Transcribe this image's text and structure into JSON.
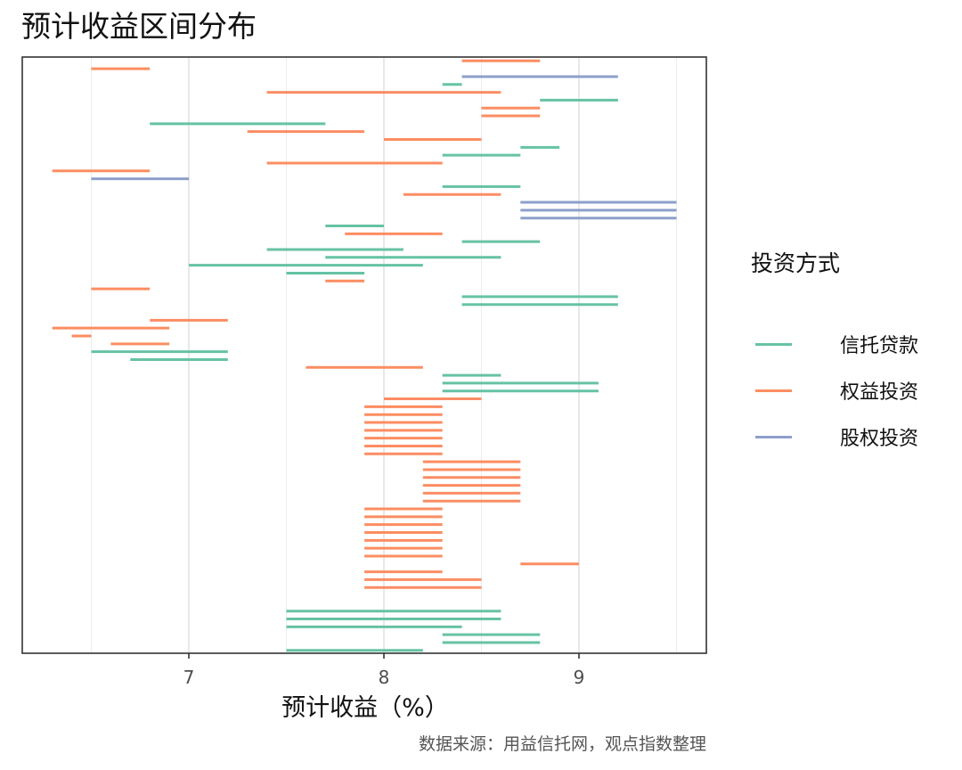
{
  "title": "预计收益区间分布",
  "caption": "数据来源：用益信托网，观点指数整理",
  "legend": {
    "title": "投资方式",
    "items": [
      {
        "label": "信托贷款",
        "color": "#66C2A5"
      },
      {
        "label": "权益投资",
        "color": "#FC8D62"
      },
      {
        "label": "股权投资",
        "color": "#8DA0CB"
      }
    ]
  },
  "chart_data": {
    "type": "range-segments",
    "title": "预计收益区间分布",
    "xlabel": "预计收益（%）",
    "ylabel": "",
    "xlim": [
      6.2,
      9.65
    ],
    "x_ticks": [
      7,
      8,
      9
    ],
    "minor_gridlines": [
      6.5,
      7.5,
      8.5,
      9.5
    ],
    "grid": true,
    "legend_position": "right",
    "legend_title": "投资方式",
    "categories": [
      "信托贷款",
      "权益投资",
      "股权投资"
    ],
    "colors": {
      "信托贷款": "#66C2A5",
      "权益投资": "#FC8D62",
      "股权投资": "#8DA0CB"
    },
    "rows_total": 76,
    "segments": [
      {
        "row": 0,
        "type": "权益投资",
        "low": 8.4,
        "high": 8.8
      },
      {
        "row": 1,
        "type": "权益投资",
        "low": 6.5,
        "high": 6.8
      },
      {
        "row": 2,
        "type": "股权投资",
        "low": 8.4,
        "high": 9.2
      },
      {
        "row": 3,
        "type": "信托贷款",
        "low": 8.3,
        "high": 8.4
      },
      {
        "row": 4,
        "type": "权益投资",
        "low": 7.4,
        "high": 8.6
      },
      {
        "row": 5,
        "type": "信托贷款",
        "low": 8.8,
        "high": 9.2
      },
      {
        "row": 6,
        "type": "权益投资",
        "low": 8.5,
        "high": 8.8
      },
      {
        "row": 7,
        "type": "权益投资",
        "low": 8.5,
        "high": 8.8
      },
      {
        "row": 8,
        "type": "信托贷款",
        "low": 6.8,
        "high": 7.7
      },
      {
        "row": 9,
        "type": "权益投资",
        "low": 7.3,
        "high": 7.9
      },
      {
        "row": 10,
        "type": "权益投资",
        "low": 8.0,
        "high": 8.5
      },
      {
        "row": 11,
        "type": "信托贷款",
        "low": 8.7,
        "high": 8.9
      },
      {
        "row": 12,
        "type": "信托贷款",
        "low": 8.3,
        "high": 8.7
      },
      {
        "row": 13,
        "type": "权益投资",
        "low": 7.4,
        "high": 8.3
      },
      {
        "row": 14,
        "type": "权益投资",
        "low": 6.3,
        "high": 6.8
      },
      {
        "row": 15,
        "type": "股权投资",
        "low": 6.5,
        "high": 7.0
      },
      {
        "row": 16,
        "type": "信托贷款",
        "low": 8.3,
        "high": 8.7
      },
      {
        "row": 17,
        "type": "权益投资",
        "low": 8.1,
        "high": 8.6
      },
      {
        "row": 18,
        "type": "股权投资",
        "low": 8.7,
        "high": 9.5
      },
      {
        "row": 19,
        "type": "股权投资",
        "low": 8.7,
        "high": 9.5
      },
      {
        "row": 20,
        "type": "股权投资",
        "low": 8.7,
        "high": 9.5
      },
      {
        "row": 21,
        "type": "信托贷款",
        "low": 7.7,
        "high": 8.0
      },
      {
        "row": 22,
        "type": "权益投资",
        "low": 7.8,
        "high": 8.3
      },
      {
        "row": 23,
        "type": "信托贷款",
        "low": 8.4,
        "high": 8.8
      },
      {
        "row": 24,
        "type": "信托贷款",
        "low": 7.4,
        "high": 8.1
      },
      {
        "row": 25,
        "type": "信托贷款",
        "low": 7.7,
        "high": 8.6
      },
      {
        "row": 26,
        "type": "信托贷款",
        "low": 7.0,
        "high": 8.2
      },
      {
        "row": 27,
        "type": "信托贷款",
        "low": 7.5,
        "high": 7.9
      },
      {
        "row": 28,
        "type": "权益投资",
        "low": 7.7,
        "high": 7.9
      },
      {
        "row": 29,
        "type": "权益投资",
        "low": 6.5,
        "high": 6.8
      },
      {
        "row": 30,
        "type": "信托贷款",
        "low": 8.4,
        "high": 9.2
      },
      {
        "row": 31,
        "type": "信托贷款",
        "low": 8.4,
        "high": 9.2
      },
      {
        "row": 33,
        "type": "权益投资",
        "low": 6.8,
        "high": 7.2
      },
      {
        "row": 34,
        "type": "权益投资",
        "low": 6.3,
        "high": 6.9
      },
      {
        "row": 35,
        "type": "权益投资",
        "low": 6.4,
        "high": 6.5
      },
      {
        "row": 36,
        "type": "权益投资",
        "low": 6.6,
        "high": 6.9
      },
      {
        "row": 37,
        "type": "信托贷款",
        "low": 6.5,
        "high": 7.2
      },
      {
        "row": 38,
        "type": "信托贷款",
        "low": 6.7,
        "high": 7.2
      },
      {
        "row": 39,
        "type": "权益投资",
        "low": 7.6,
        "high": 8.2
      },
      {
        "row": 40,
        "type": "信托贷款",
        "low": 8.3,
        "high": 8.6
      },
      {
        "row": 41,
        "type": "信托贷款",
        "low": 8.3,
        "high": 9.1
      },
      {
        "row": 42,
        "type": "信托贷款",
        "low": 8.3,
        "high": 9.1
      },
      {
        "row": 43,
        "type": "权益投资",
        "low": 8.0,
        "high": 8.5
      },
      {
        "row": 44,
        "type": "权益投资",
        "low": 7.9,
        "high": 8.3
      },
      {
        "row": 45,
        "type": "权益投资",
        "low": 7.9,
        "high": 8.3
      },
      {
        "row": 46,
        "type": "权益投资",
        "low": 7.9,
        "high": 8.3
      },
      {
        "row": 47,
        "type": "权益投资",
        "low": 7.9,
        "high": 8.3
      },
      {
        "row": 48,
        "type": "权益投资",
        "low": 7.9,
        "high": 8.3
      },
      {
        "row": 49,
        "type": "权益投资",
        "low": 7.9,
        "high": 8.3
      },
      {
        "row": 50,
        "type": "权益投资",
        "low": 7.9,
        "high": 8.3
      },
      {
        "row": 51,
        "type": "权益投资",
        "low": 8.2,
        "high": 8.7
      },
      {
        "row": 52,
        "type": "权益投资",
        "low": 8.2,
        "high": 8.7
      },
      {
        "row": 53,
        "type": "权益投资",
        "low": 8.2,
        "high": 8.7
      },
      {
        "row": 54,
        "type": "权益投资",
        "low": 8.2,
        "high": 8.7
      },
      {
        "row": 55,
        "type": "权益投资",
        "low": 8.2,
        "high": 8.7
      },
      {
        "row": 56,
        "type": "权益投资",
        "low": 8.2,
        "high": 8.7
      },
      {
        "row": 57,
        "type": "权益投资",
        "low": 7.9,
        "high": 8.3
      },
      {
        "row": 58,
        "type": "权益投资",
        "low": 7.9,
        "high": 8.3
      },
      {
        "row": 59,
        "type": "权益投资",
        "low": 7.9,
        "high": 8.3
      },
      {
        "row": 60,
        "type": "权益投资",
        "low": 7.9,
        "high": 8.3
      },
      {
        "row": 61,
        "type": "权益投资",
        "low": 7.9,
        "high": 8.3
      },
      {
        "row": 62,
        "type": "权益投资",
        "low": 7.9,
        "high": 8.3
      },
      {
        "row": 63,
        "type": "权益投资",
        "low": 7.9,
        "high": 8.3
      },
      {
        "row": 64,
        "type": "权益投资",
        "low": 8.7,
        "high": 9.0
      },
      {
        "row": 65,
        "type": "权益投资",
        "low": 7.9,
        "high": 8.3
      },
      {
        "row": 66,
        "type": "权益投资",
        "low": 7.9,
        "high": 8.5
      },
      {
        "row": 67,
        "type": "权益投资",
        "low": 7.9,
        "high": 8.5
      },
      {
        "row": 70,
        "type": "信托贷款",
        "low": 7.5,
        "high": 8.6
      },
      {
        "row": 71,
        "type": "信托贷款",
        "low": 7.5,
        "high": 8.6
      },
      {
        "row": 72,
        "type": "信托贷款",
        "low": 7.5,
        "high": 8.4
      },
      {
        "row": 73,
        "type": "信托贷款",
        "low": 8.3,
        "high": 8.8
      },
      {
        "row": 74,
        "type": "信托贷款",
        "low": 8.3,
        "high": 8.8
      },
      {
        "row": 75,
        "type": "信托贷款",
        "low": 7.5,
        "high": 8.2
      }
    ]
  }
}
